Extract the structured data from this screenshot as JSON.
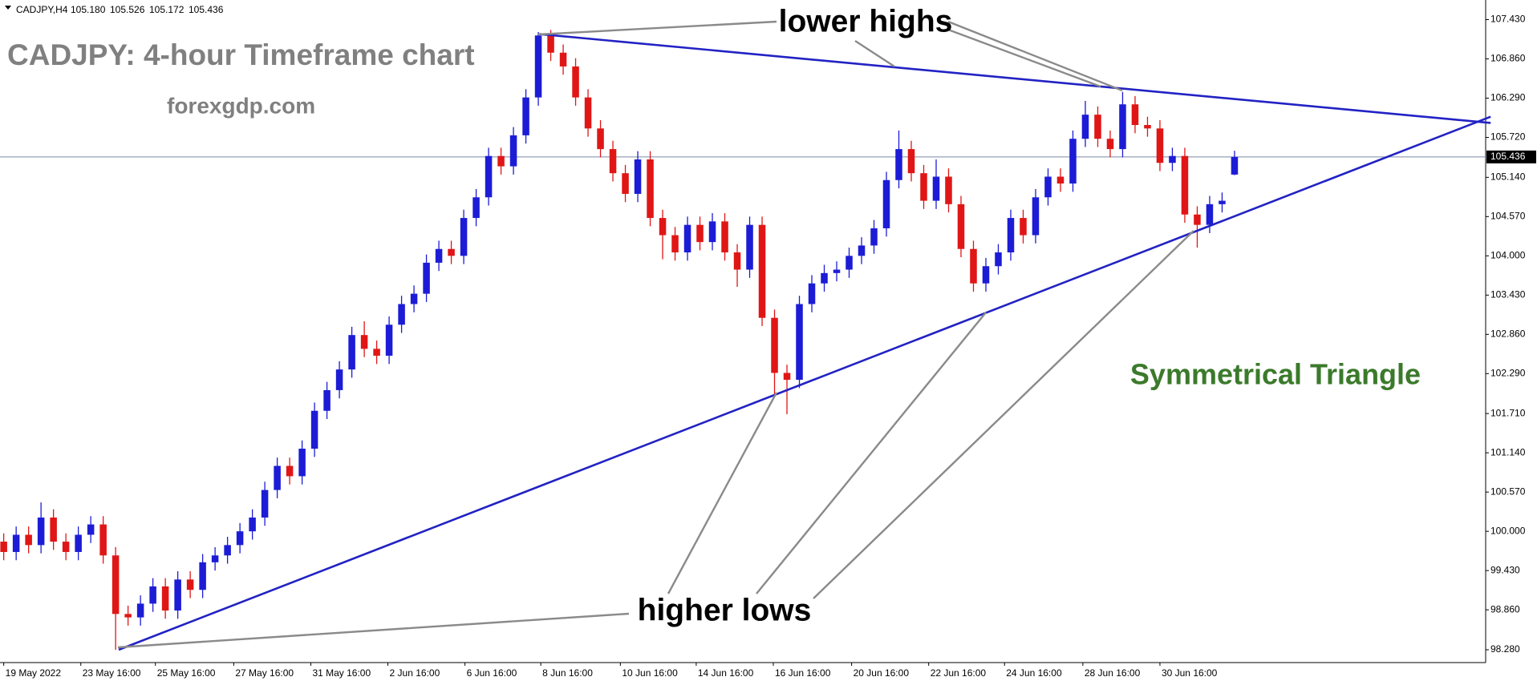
{
  "chart_data": {
    "type": "candlestick",
    "header": {
      "symbol": "CADJPY,H4",
      "values": [
        "105.180",
        "105.526",
        "105.172",
        "105.436"
      ]
    },
    "title": "CADJPY: 4-hour Timeframe chart",
    "subtitle": "forexgdp.com",
    "annotations": [
      "lower highs",
      "higher lows",
      "Symmetrical Triangle"
    ],
    "up_color": "#1c1cd6",
    "down_color": "#e01616",
    "trendline_color": "#2222c4",
    "open": [
      99.85,
      99.7,
      99.95,
      99.8,
      100.2,
      99.85,
      99.7,
      99.95,
      100.1,
      99.65,
      98.8,
      98.75,
      98.95,
      99.2,
      98.85,
      99.3,
      99.15,
      99.55,
      99.65,
      99.8,
      100.0,
      100.2,
      100.6,
      100.95,
      100.8,
      101.2,
      101.75,
      102.05,
      102.35,
      102.85,
      102.65,
      102.55,
      103.0,
      103.3,
      103.45,
      103.9,
      104.1,
      104.0,
      104.55,
      104.85,
      105.45,
      105.3,
      105.75,
      106.3,
      107.2,
      106.95,
      106.75,
      106.3,
      105.85,
      105.55,
      105.2,
      104.9,
      105.4,
      104.55,
      104.3,
      104.05,
      104.45,
      104.2,
      104.5,
      104.05,
      103.8,
      104.45,
      103.1,
      102.3,
      102.2,
      103.3,
      103.6,
      103.75,
      103.8,
      104.0,
      104.15,
      104.4,
      105.1,
      105.55,
      105.2,
      104.8,
      105.15,
      104.75,
      104.1,
      103.6,
      103.85,
      104.05,
      104.55,
      104.3,
      104.85,
      105.15,
      105.05,
      105.7,
      106.05,
      105.7,
      105.55,
      106.2,
      105.9,
      105.85,
      105.35,
      105.45,
      104.6,
      104.45,
      104.75,
      105.18
    ],
    "high": [
      99.97,
      100.07,
      100.07,
      100.42,
      100.32,
      99.97,
      100.07,
      100.22,
      100.22,
      99.77,
      98.92,
      99.07,
      99.32,
      99.32,
      99.42,
      99.42,
      99.67,
      99.77,
      99.92,
      100.12,
      100.32,
      100.72,
      101.07,
      101.07,
      101.32,
      101.87,
      102.17,
      102.47,
      102.97,
      103.05,
      102.77,
      103.12,
      103.42,
      103.57,
      104.02,
      104.22,
      104.22,
      104.67,
      104.97,
      105.57,
      105.57,
      105.87,
      106.42,
      107.25,
      107.28,
      107.07,
      106.87,
      106.42,
      105.97,
      105.67,
      105.32,
      105.52,
      105.52,
      104.67,
      104.42,
      104.57,
      104.57,
      104.62,
      104.62,
      104.17,
      104.57,
      104.57,
      103.22,
      102.42,
      103.42,
      103.72,
      103.87,
      103.92,
      104.12,
      104.27,
      104.52,
      105.22,
      105.82,
      105.67,
      105.32,
      105.4,
      105.27,
      104.87,
      104.22,
      103.97,
      104.17,
      104.67,
      104.67,
      104.97,
      105.27,
      105.27,
      105.82,
      106.25,
      106.17,
      105.82,
      106.38,
      106.32,
      106.02,
      105.97,
      105.57,
      105.57,
      104.72,
      104.87,
      104.92,
      105.526
    ],
    "low": [
      99.58,
      99.58,
      99.68,
      99.68,
      99.73,
      99.58,
      99.58,
      99.83,
      99.53,
      98.28,
      98.63,
      98.63,
      98.83,
      98.73,
      98.73,
      99.03,
      99.03,
      99.43,
      99.53,
      99.68,
      99.88,
      100.08,
      100.48,
      100.68,
      100.68,
      101.08,
      101.63,
      101.93,
      102.23,
      102.53,
      102.43,
      102.43,
      102.88,
      103.18,
      103.33,
      103.78,
      103.88,
      103.88,
      104.43,
      104.73,
      105.18,
      105.18,
      105.63,
      106.18,
      106.83,
      106.63,
      106.18,
      105.73,
      105.43,
      105.08,
      104.78,
      104.78,
      104.43,
      103.95,
      103.93,
      103.93,
      104.08,
      104.08,
      103.93,
      103.55,
      103.68,
      102.98,
      101.95,
      101.7,
      102.08,
      103.18,
      103.48,
      103.63,
      103.68,
      103.88,
      104.03,
      104.28,
      104.98,
      105.08,
      104.68,
      104.68,
      104.63,
      103.98,
      103.48,
      103.48,
      103.73,
      103.93,
      104.18,
      104.18,
      104.73,
      104.93,
      104.93,
      105.58,
      105.58,
      105.43,
      105.43,
      105.78,
      105.73,
      105.23,
      105.23,
      104.48,
      104.12,
      104.33,
      104.63,
      105.172
    ],
    "close": [
      99.7,
      99.95,
      99.8,
      100.2,
      99.85,
      99.7,
      99.95,
      100.1,
      99.65,
      98.8,
      98.75,
      98.95,
      99.2,
      98.85,
      99.3,
      99.15,
      99.55,
      99.65,
      99.8,
      100.0,
      100.2,
      100.6,
      100.95,
      100.8,
      101.2,
      101.75,
      102.05,
      102.35,
      102.85,
      102.65,
      102.55,
      103.0,
      103.3,
      103.45,
      103.9,
      104.1,
      104.0,
      104.55,
      104.85,
      105.45,
      105.3,
      105.75,
      106.3,
      107.2,
      106.95,
      106.75,
      106.3,
      105.85,
      105.55,
      105.2,
      104.9,
      105.4,
      104.55,
      104.3,
      104.05,
      104.45,
      104.2,
      104.5,
      104.05,
      103.8,
      104.45,
      103.1,
      102.3,
      102.2,
      103.3,
      103.6,
      103.75,
      103.8,
      104.0,
      104.15,
      104.4,
      105.1,
      105.55,
      105.2,
      104.8,
      105.15,
      104.75,
      104.1,
      103.6,
      103.85,
      104.05,
      104.55,
      104.3,
      104.85,
      105.15,
      105.05,
      105.7,
      106.05,
      105.7,
      105.55,
      106.2,
      105.9,
      105.85,
      105.35,
      105.45,
      104.6,
      104.45,
      104.75,
      104.8,
      105.436
    ],
    "xlim": [
      -0.3,
      119.2
    ],
    "ylim": [
      98.094,
      107.715
    ],
    "yticks": [
      {
        "value": 107.43,
        "label": "107.430"
      },
      {
        "value": 106.86,
        "label": "106.860"
      },
      {
        "value": 106.29,
        "label": "106.290"
      },
      {
        "value": 105.72,
        "label": "105.720"
      },
      {
        "value": 105.14,
        "label": "105.140"
      },
      {
        "value": 104.57,
        "label": "104.570"
      },
      {
        "value": 104.0,
        "label": "104.000"
      },
      {
        "value": 103.43,
        "label": "103.430"
      },
      {
        "value": 102.86,
        "label": "102.860"
      },
      {
        "value": 102.29,
        "label": "102.290"
      },
      {
        "value": 101.71,
        "label": "101.710"
      },
      {
        "value": 101.14,
        "label": "101.140"
      },
      {
        "value": 100.57,
        "label": "100.570"
      },
      {
        "value": 100.0,
        "label": "100.000"
      },
      {
        "value": 99.43,
        "label": "99.430"
      },
      {
        "value": 98.86,
        "label": "98.860"
      },
      {
        "value": 98.28,
        "label": "98.280"
      }
    ],
    "xticks": [
      {
        "value": 0,
        "label": "19 May 2022"
      },
      {
        "value": 6.2,
        "label": "23 May 16:00"
      },
      {
        "value": 12.2,
        "label": "25 May 16:00"
      },
      {
        "value": 18.5,
        "label": "27 May 16:00"
      },
      {
        "value": 24.7,
        "label": "31 May 16:00"
      },
      {
        "value": 30.9,
        "label": "2 Jun 16:00"
      },
      {
        "value": 37.1,
        "label": "6 Jun 16:00"
      },
      {
        "value": 43.2,
        "label": "8 Jun 16:00"
      },
      {
        "value": 49.6,
        "label": "10 Jun 16:00"
      },
      {
        "value": 55.7,
        "label": "14 Jun 16:00"
      },
      {
        "value": 61.9,
        "label": "16 Jun 16:00"
      },
      {
        "value": 68.2,
        "label": "20 Jun 16:00"
      },
      {
        "value": 74.4,
        "label": "22 Jun 16:00"
      },
      {
        "value": 80.5,
        "label": "24 Jun 16:00"
      },
      {
        "value": 86.8,
        "label": "28 Jun 16:00"
      },
      {
        "value": 93.0,
        "label": "30 Jun 16:00"
      }
    ],
    "last_price": {
      "value": 105.436,
      "label": "105.436"
    },
    "trendlines": [
      {
        "from": [
          43.1,
          107.22
        ],
        "to": [
          119.6,
          105.93
        ]
      },
      {
        "from": [
          9.25,
          98.28
        ],
        "to": [
          119.6,
          106.02
        ]
      }
    ]
  }
}
